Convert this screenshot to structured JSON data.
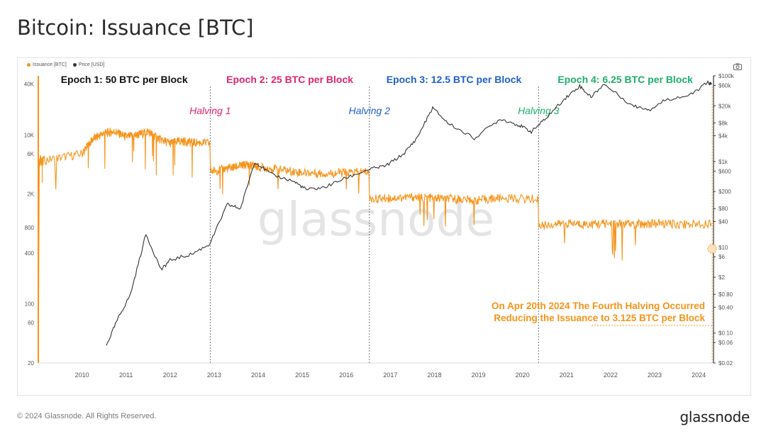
{
  "header": {
    "title": "Bitcoin: Issuance [BTC]"
  },
  "legend": [
    {
      "label": "Issuance [BTC]",
      "color": "#f7931a"
    },
    {
      "label": "Price [USD]",
      "color": "#333333"
    }
  ],
  "watermark": "glassnode",
  "footer": {
    "copyright": "© 2024 Glassnode. All Rights Reserved.",
    "logo": "glassnode"
  },
  "icons": {
    "screenshot": "camera-icon"
  },
  "chart_data": {
    "type": "line",
    "title": "Bitcoin: Issuance [BTC]",
    "x_axis": {
      "type": "date",
      "range": [
        "2009-01-03",
        "2024-05-01"
      ],
      "tick_labels": [
        "2010",
        "2011",
        "2012",
        "2013",
        "2014",
        "2015",
        "2016",
        "2017",
        "2018",
        "2019",
        "2020",
        "2021",
        "2022",
        "2023",
        "2024"
      ]
    },
    "y_left": {
      "scale": "log",
      "range": [
        20,
        50000
      ],
      "tick_labels": [
        "40K",
        "10K",
        "6K",
        "2K",
        "800",
        "400",
        "100",
        "60",
        "20"
      ],
      "tick_values": [
        40000,
        10000,
        6000,
        2000,
        800,
        400,
        100,
        60,
        20
      ]
    },
    "y_right": {
      "scale": "log",
      "range": [
        0.02,
        100000
      ],
      "tick_labels": [
        "$100k",
        "$60k",
        "$20k",
        "$8k",
        "$4k",
        "$1k",
        "$600",
        "$200",
        "$80",
        "$40",
        "$10",
        "$6",
        "$2",
        "$0.80",
        "$0.40",
        "$0.10",
        "$0.06",
        "$0.02"
      ],
      "tick_values": [
        100000,
        60000,
        20000,
        8000,
        4000,
        1000,
        600,
        200,
        80,
        40,
        10,
        6,
        2,
        0.8,
        0.4,
        0.1,
        0.06,
        0.02
      ]
    },
    "grid": false,
    "legend_position": "top-left",
    "epochs": [
      {
        "label": "Epoch 1: 50 BTC per Block",
        "color": "#111111",
        "start": "2009-01-03"
      },
      {
        "label": "Epoch 2: 25 BTC per Block",
        "color": "#e0246f",
        "start": "2012-11-28"
      },
      {
        "label": "Epoch 3: 12.5 BTC per Block",
        "color": "#1f5fd0",
        "start": "2016-07-09"
      },
      {
        "label": "Epoch 4: 6.25 BTC per Block",
        "color": "#1fae6e",
        "start": "2020-05-11"
      }
    ],
    "halvings": [
      {
        "label": "Halving 1",
        "date": "2012-11-28",
        "color": "#e0246f"
      },
      {
        "label": "Halving 2",
        "date": "2016-07-09",
        "color": "#1f5fd0"
      },
      {
        "label": "Halving 3",
        "date": "2020-05-11",
        "color": "#1fae6e"
      },
      {
        "label": "",
        "date": "2024-04-20",
        "color": "#f7931a"
      }
    ],
    "annotation": {
      "lines": [
        "On Apr 20th 2024 The Fourth Halving Occurred",
        "Reducing the Issuance to 3.125 BTC per Block"
      ],
      "color": "#f7931a",
      "target_value": 450
    },
    "series": [
      {
        "name": "Issuance [BTC]",
        "color": "#f7931a",
        "axis": "left",
        "points": [
          [
            "2009.01",
            20
          ],
          [
            "2009.03",
            4500
          ],
          [
            "2009.06",
            5200
          ],
          [
            "2009.09",
            4800
          ],
          [
            "2009.12",
            5000
          ],
          [
            "2010.0",
            6000
          ],
          [
            "2010.25",
            9000
          ],
          [
            "2010.5",
            10500
          ],
          [
            "2010.75",
            11000
          ],
          [
            "2011.0",
            9500
          ],
          [
            "2011.25",
            10000
          ],
          [
            "2011.5",
            11000
          ],
          [
            "2011.75",
            9000
          ],
          [
            "2012.0",
            8000
          ],
          [
            "2012.25",
            8500
          ],
          [
            "2012.5",
            8200
          ],
          [
            "2012.9",
            8000
          ],
          [
            "2012.92",
            3700
          ],
          [
            "2013.25",
            4000
          ],
          [
            "2013.5",
            4200
          ],
          [
            "2013.75",
            4500
          ],
          [
            "2014.0",
            4200
          ],
          [
            "2014.5",
            3900
          ],
          [
            "2015.0",
            3600
          ],
          [
            "2015.5",
            3500
          ],
          [
            "2016.0",
            3600
          ],
          [
            "2016.51",
            3700
          ],
          [
            "2016.53",
            1750
          ],
          [
            "2017.0",
            1800
          ],
          [
            "2017.5",
            1850
          ],
          [
            "2018.0",
            1800
          ],
          [
            "2018.5",
            1750
          ],
          [
            "2019.0",
            1700
          ],
          [
            "2019.5",
            1800
          ],
          [
            "2020.35",
            1750
          ],
          [
            "2020.37",
            850
          ],
          [
            "2021.0",
            900
          ],
          [
            "2021.5",
            880
          ],
          [
            "2022.0",
            900
          ],
          [
            "2022.5",
            880
          ],
          [
            "2023.0",
            900
          ],
          [
            "2023.5",
            880
          ],
          [
            "2024.29",
            900
          ]
        ]
      },
      {
        "name": "Price [USD]",
        "color": "#333333",
        "axis": "right",
        "points": [
          [
            "2010.55",
            0.05
          ],
          [
            "2010.8",
            0.2
          ],
          [
            "2011.1",
            0.8
          ],
          [
            "2011.45",
            20
          ],
          [
            "2011.8",
            3
          ],
          [
            "2012.0",
            5
          ],
          [
            "2012.5",
            7
          ],
          [
            "2012.9",
            12
          ],
          [
            "2013.3",
            100
          ],
          [
            "2013.6",
            80
          ],
          [
            "2013.92",
            1000
          ],
          [
            "2014.3",
            500
          ],
          [
            "2014.8",
            350
          ],
          [
            "2015.1",
            220
          ],
          [
            "2015.5",
            250
          ],
          [
            "2015.95",
            400
          ],
          [
            "2016.5",
            650
          ],
          [
            "2016.9",
            800
          ],
          [
            "2017.3",
            1500
          ],
          [
            "2017.6",
            3500
          ],
          [
            "2017.96",
            18000
          ],
          [
            "2018.3",
            8000
          ],
          [
            "2018.9",
            3500
          ],
          [
            "2019.5",
            10000
          ],
          [
            "2019.9",
            7200
          ],
          [
            "2020.2",
            5000
          ],
          [
            "2020.5",
            9500
          ],
          [
            "2020.95",
            29000
          ],
          [
            "2021.3",
            58000
          ],
          [
            "2021.55",
            32000
          ],
          [
            "2021.85",
            64000
          ],
          [
            "2022.5",
            20000
          ],
          [
            "2022.9",
            16500
          ],
          [
            "2023.25",
            28000
          ],
          [
            "2023.8",
            35000
          ],
          [
            "2024.2",
            70000
          ],
          [
            "2024.29",
            63000
          ]
        ]
      }
    ]
  }
}
